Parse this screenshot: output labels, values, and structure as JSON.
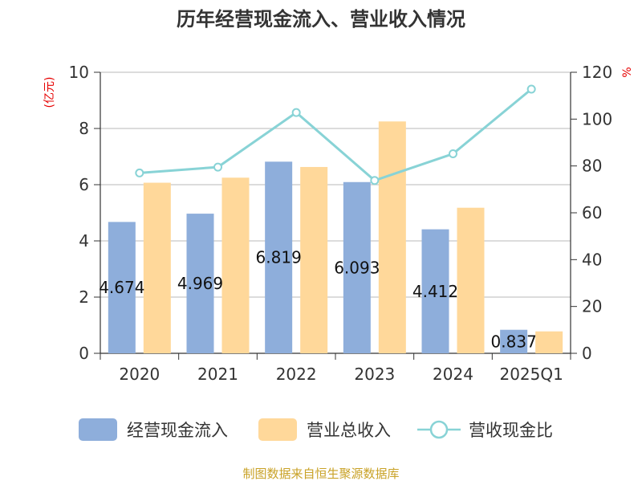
{
  "chart_data": {
    "type": "bar",
    "title": "历年经营现金流入、营业收入情况",
    "categories": [
      "2020",
      "2021",
      "2022",
      "2023",
      "2024",
      "2025Q1"
    ],
    "series": [
      {
        "name": "经营现金流入",
        "type": "bar",
        "axis": "left",
        "color": "#8eaedb",
        "values": [
          4.674,
          4.969,
          6.819,
          6.093,
          4.412,
          0.837
        ],
        "labels": [
          "4.674",
          "4.969",
          "6.819",
          "6.093",
          "4.412",
          "0.837"
        ]
      },
      {
        "name": "营业总收入",
        "type": "bar",
        "axis": "left",
        "color": "#ffd89a",
        "values": [
          6.07,
          6.25,
          6.63,
          8.25,
          5.18,
          0.78
        ]
      },
      {
        "name": "营收现金比",
        "type": "line",
        "axis": "right",
        "color": "#88d3d6",
        "values": [
          77.0,
          79.5,
          102.8,
          73.8,
          85.2,
          112.8
        ]
      }
    ],
    "y_left": {
      "unit": "(亿元)",
      "min": 0,
      "max": 10,
      "ticks": [
        "0",
        "2",
        "4",
        "6",
        "8",
        "10"
      ]
    },
    "y_right": {
      "unit": "%",
      "min": 0,
      "max": 120,
      "ticks": [
        "0",
        "20",
        "40",
        "60",
        "80",
        "100",
        "120"
      ]
    },
    "grid": true,
    "legend": "bottom"
  },
  "source": "制图数据来自恒生聚源数据库"
}
